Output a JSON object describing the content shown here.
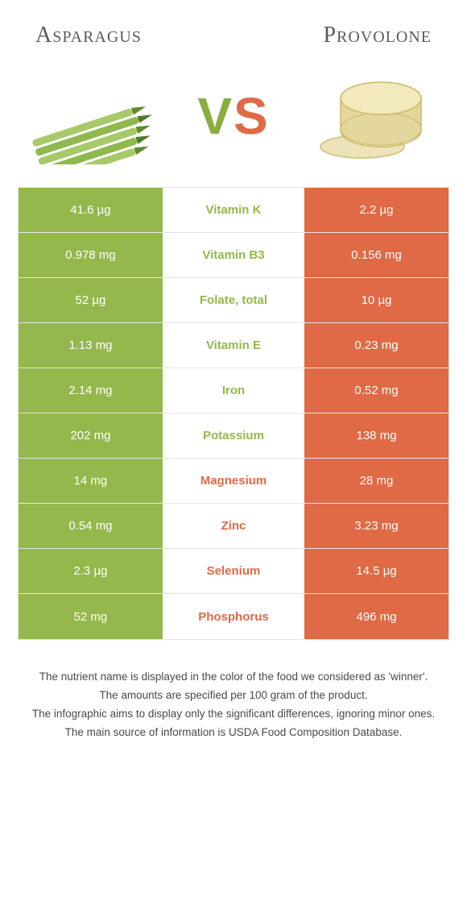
{
  "header": {
    "left_title": "Asparagus",
    "right_title": "Provolone"
  },
  "vs": {
    "v": "V",
    "s": "S"
  },
  "palette": {
    "left_color": "#94b84b",
    "right_color": "#df6a45",
    "mid_bg": "#ffffff",
    "row_border": "#e5e5e5"
  },
  "rows": [
    {
      "nutrient": "Vitamin K",
      "left": "41.6 µg",
      "right": "2.2 µg",
      "winner": "left"
    },
    {
      "nutrient": "Vitamin B3",
      "left": "0.978 mg",
      "right": "0.156 mg",
      "winner": "left"
    },
    {
      "nutrient": "Folate, total",
      "left": "52 µg",
      "right": "10 µg",
      "winner": "left"
    },
    {
      "nutrient": "Vitamin E",
      "left": "1.13 mg",
      "right": "0.23 mg",
      "winner": "left"
    },
    {
      "nutrient": "Iron",
      "left": "2.14 mg",
      "right": "0.52 mg",
      "winner": "left"
    },
    {
      "nutrient": "Potassium",
      "left": "202 mg",
      "right": "138 mg",
      "winner": "left"
    },
    {
      "nutrient": "Magnesium",
      "left": "14 mg",
      "right": "28 mg",
      "winner": "right"
    },
    {
      "nutrient": "Zinc",
      "left": "0.54 mg",
      "right": "3.23 mg",
      "winner": "right"
    },
    {
      "nutrient": "Selenium",
      "left": "2.3 µg",
      "right": "14.5 µg",
      "winner": "right"
    },
    {
      "nutrient": "Phosphorus",
      "left": "52 mg",
      "right": "496 mg",
      "winner": "right"
    }
  ],
  "footnotes": [
    "The nutrient name is displayed in the color of the food we considered as 'winner'.",
    "The amounts are specified per 100 gram of the product.",
    "The infographic aims to display only the significant differences, ignoring minor ones.",
    "The main source of information is USDA Food Composition Database."
  ]
}
